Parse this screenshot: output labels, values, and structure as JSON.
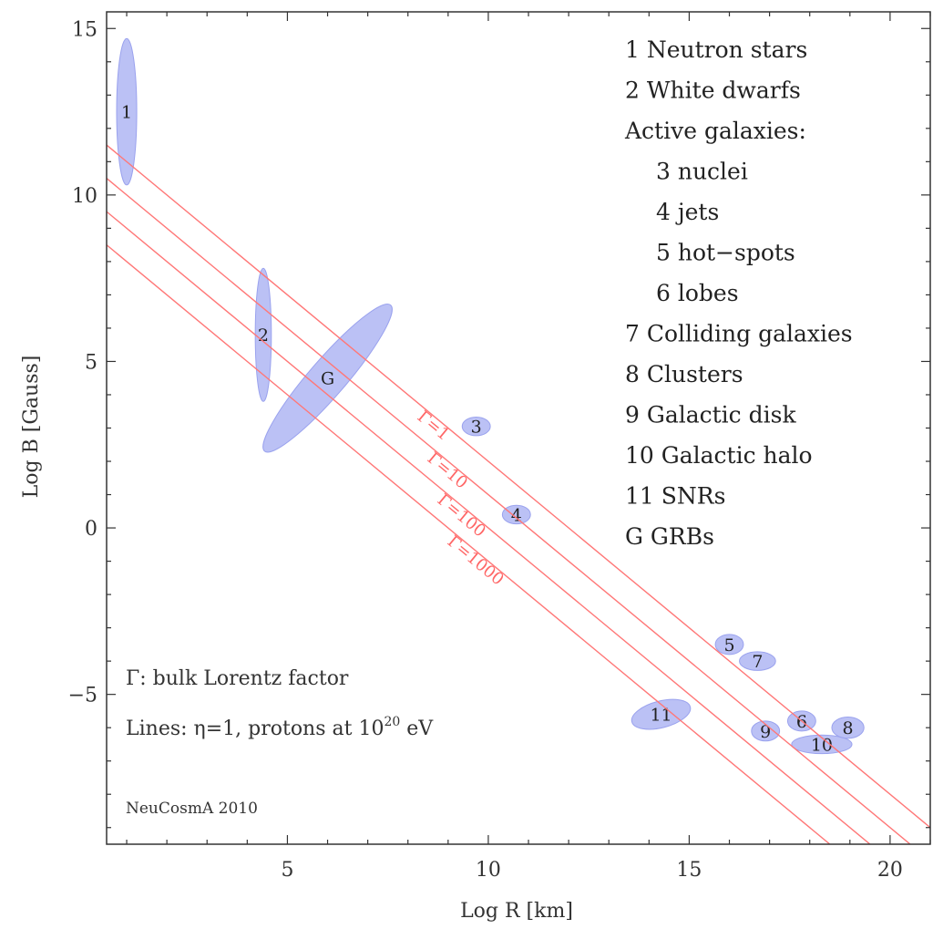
{
  "chart_data": {
    "type": "scatter",
    "xlabel": "Log R [km]",
    "ylabel": "Log B [Gauss]",
    "xlim": [
      0.5,
      21.0
    ],
    "ylim": [
      -9.5,
      15.5
    ],
    "xticks": [
      5,
      10,
      15,
      20
    ],
    "yticks": [
      -5,
      0,
      5,
      10,
      15
    ],
    "xtick_labels": [
      "5",
      "10",
      "15",
      "20"
    ],
    "ytick_labels": [
      "−5",
      "0",
      "5",
      "10",
      "15"
    ],
    "grid": false,
    "legend_placement": "top-right",
    "legend": [
      {
        "text": "1 Neutron stars",
        "indent": false
      },
      {
        "text": "2 White dwarfs",
        "indent": false
      },
      {
        "text": "Active galaxies:",
        "indent": false
      },
      {
        "text": "3 nuclei",
        "indent": true
      },
      {
        "text": "4 jets",
        "indent": true
      },
      {
        "text": "5 hot−spots",
        "indent": true
      },
      {
        "text": "6 lobes",
        "indent": true
      },
      {
        "text": "7 Colliding galaxies",
        "indent": false
      },
      {
        "text": "8 Clusters",
        "indent": false
      },
      {
        "text": "9 Galactic disk",
        "indent": false
      },
      {
        "text": "10 Galactic halo",
        "indent": false
      },
      {
        "text": "11 SNRs",
        "indent": false
      },
      {
        "text": "G GRBs",
        "indent": false
      }
    ],
    "regions": [
      {
        "label": "1",
        "cx": 1.0,
        "cy": 12.5,
        "rx": 0.25,
        "ry": 2.2,
        "angle": 0
      },
      {
        "label": "2",
        "cx": 4.4,
        "cy": 5.8,
        "rx": 0.2,
        "ry": 2.0,
        "angle": 0
      },
      {
        "label": "G",
        "cx": 6.0,
        "cy": 4.5,
        "rx": 2.4,
        "ry": 0.55,
        "angle": -0.95
      },
      {
        "label": "3",
        "cx": 9.7,
        "cy": 3.05,
        "rx": 0.35,
        "ry": 0.28,
        "angle": 0
      },
      {
        "label": "4",
        "cx": 10.7,
        "cy": 0.4,
        "rx": 0.35,
        "ry": 0.28,
        "angle": 0
      },
      {
        "label": "5",
        "cx": 16.0,
        "cy": -3.5,
        "rx": 0.35,
        "ry": 0.3,
        "angle": 0
      },
      {
        "label": "7",
        "cx": 16.7,
        "cy": -4.0,
        "rx": 0.45,
        "ry": 0.28,
        "angle": 0
      },
      {
        "label": "11",
        "cx": 14.3,
        "cy": -5.6,
        "rx": 0.75,
        "ry": 0.4,
        "angle": -0.3
      },
      {
        "label": "9",
        "cx": 16.9,
        "cy": -6.1,
        "rx": 0.35,
        "ry": 0.3,
        "angle": 0
      },
      {
        "label": "6",
        "cx": 17.8,
        "cy": -5.8,
        "rx": 0.35,
        "ry": 0.3,
        "angle": 0
      },
      {
        "label": "10",
        "cx": 18.3,
        "cy": -6.5,
        "rx": 0.75,
        "ry": 0.28,
        "angle": 0
      },
      {
        "label": "8",
        "cx": 18.95,
        "cy": -6.0,
        "rx": 0.4,
        "ry": 0.32,
        "angle": 0
      }
    ],
    "lines": [
      {
        "gamma_label": "Γ=1",
        "intercept": 12.0,
        "slope": -1
      },
      {
        "gamma_label": "Γ=10",
        "intercept": 11.0,
        "slope": -1
      },
      {
        "gamma_label": "Γ=100",
        "intercept": 10.0,
        "slope": -1
      },
      {
        "gamma_label": "Γ=1000",
        "intercept": 9.0,
        "slope": -1
      }
    ],
    "annotations": {
      "gamma_note": "Γ: bulk Lorentz factor",
      "lines_note_prefix": "Lines: η=1, protons at 10",
      "lines_note_exp": "20",
      "lines_note_suffix": " eV",
      "credit": "NeuCosmA 2010"
    }
  },
  "colors": {
    "region_fill": "#aab2f2",
    "region_stroke": "#9aa2ee",
    "line": "#ff7777",
    "axis": "#333333"
  }
}
